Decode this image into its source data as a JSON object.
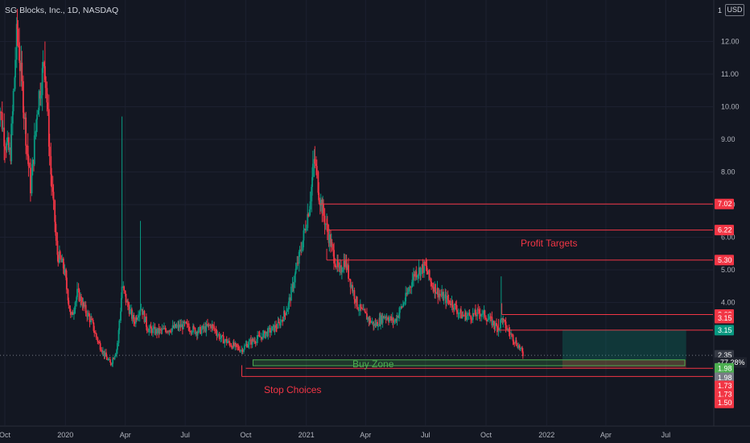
{
  "header": {
    "title": "SG Blocks, Inc., 1D, NASDAQ",
    "currency": "USD",
    "scale_marker": "1"
  },
  "chart_data": {
    "type": "candlestick",
    "title": "SG Blocks, Inc., 1D, NASDAQ",
    "ylim": [
      1.3,
      13.0
    ],
    "y_ticks": [
      "12.00",
      "11.00",
      "10.00",
      "9.00",
      "8.00",
      "7.00",
      "6.00",
      "5.00",
      "4.00"
    ],
    "x_ticks": [
      "Oct",
      "2020",
      "Apr",
      "Jul",
      "Oct",
      "2021",
      "Apr",
      "Jul",
      "Oct",
      "2022",
      "Apr",
      "Jul"
    ],
    "price_path": [
      [
        "2019-09-20",
        10.5
      ],
      [
        "2019-10-01",
        9.0
      ],
      [
        "2019-10-10",
        8.5
      ],
      [
        "2019-10-20",
        12.5
      ],
      [
        "2019-11-01",
        9.5
      ],
      [
        "2019-11-10",
        7.5
      ],
      [
        "2019-11-20",
        10.0
      ],
      [
        "2019-12-01",
        11.5
      ],
      [
        "2019-12-10",
        8.0
      ],
      [
        "2019-12-20",
        5.5
      ],
      [
        "2019-12-31",
        5.0
      ],
      [
        "2020-01-10",
        3.5
      ],
      [
        "2020-01-20",
        4.3
      ],
      [
        "2020-01-31",
        3.8
      ],
      [
        "2020-02-10",
        3.4
      ],
      [
        "2020-02-20",
        2.8
      ],
      [
        "2020-03-01",
        2.4
      ],
      [
        "2020-03-10",
        2.1
      ],
      [
        "2020-03-20",
        2.6
      ],
      [
        "2020-03-28",
        4.5
      ],
      [
        "2020-04-05",
        3.9
      ],
      [
        "2020-04-15",
        3.4
      ],
      [
        "2020-04-25",
        3.9
      ],
      [
        "2020-05-05",
        3.2
      ],
      [
        "2020-05-20",
        3.1
      ],
      [
        "2020-06-10",
        3.2
      ],
      [
        "2020-07-01",
        3.3
      ],
      [
        "2020-07-20",
        3.1
      ],
      [
        "2020-08-10",
        3.3
      ],
      [
        "2020-08-25",
        2.9
      ],
      [
        "2020-09-10",
        2.7
      ],
      [
        "2020-09-25",
        2.55
      ],
      [
        "2020-10-05",
        2.75
      ],
      [
        "2020-10-20",
        2.9
      ],
      [
        "2020-11-05",
        3.1
      ],
      [
        "2020-11-20",
        3.3
      ],
      [
        "2020-12-05",
        3.9
      ],
      [
        "2020-12-15",
        4.8
      ],
      [
        "2020-12-28",
        6.0
      ],
      [
        "2021-01-06",
        7.0
      ],
      [
        "2021-01-14",
        8.4
      ],
      [
        "2021-01-22",
        7.2
      ],
      [
        "2021-02-01",
        6.3
      ],
      [
        "2021-02-10",
        5.6
      ],
      [
        "2021-02-20",
        4.9
      ],
      [
        "2021-03-01",
        5.3
      ],
      [
        "2021-03-10",
        4.6
      ],
      [
        "2021-03-20",
        3.9
      ],
      [
        "2021-04-01",
        3.6
      ],
      [
        "2021-04-15",
        3.3
      ],
      [
        "2021-05-01",
        3.6
      ],
      [
        "2021-05-15",
        3.4
      ],
      [
        "2021-06-01",
        4.1
      ],
      [
        "2021-06-15",
        4.9
      ],
      [
        "2021-07-01",
        5.1
      ],
      [
        "2021-07-10",
        4.6
      ],
      [
        "2021-07-25",
        4.2
      ],
      [
        "2021-08-10",
        4.0
      ],
      [
        "2021-08-25",
        3.6
      ],
      [
        "2021-09-10",
        3.6
      ],
      [
        "2021-09-25",
        3.7
      ],
      [
        "2021-10-10",
        3.4
      ],
      [
        "2021-10-20",
        3.2
      ],
      [
        "2021-10-25",
        3.5
      ],
      [
        "2021-11-05",
        3.1
      ],
      [
        "2021-11-15",
        2.8
      ],
      [
        "2021-11-22",
        2.6
      ],
      [
        "2021-11-28",
        2.35
      ]
    ],
    "levels": [
      {
        "name": "profit-target-1",
        "value": "7.02",
        "price": 7.02
      },
      {
        "name": "profit-target-2",
        "value": "6.22",
        "price": 6.22
      },
      {
        "name": "profit-target-3",
        "value": "5.30",
        "price": 5.3
      },
      {
        "name": "profit-target-4",
        "value": "3.63",
        "price": 3.63
      },
      {
        "name": "profit-target-5",
        "value": "3.15",
        "price": 3.15
      }
    ],
    "buy_zone": {
      "label": "Buy Zone",
      "top": 2.24,
      "bottom": 2.06
    },
    "stops": [
      {
        "price": 1.98
      },
      {
        "price": 1.73
      }
    ],
    "position": {
      "entry": 2.24,
      "target": 3.15,
      "stop": 1.98,
      "start": "2022-01-25",
      "end": "2022-08-01"
    },
    "price_labels": [
      {
        "name": "target-label-1",
        "text": "7.02",
        "price": 7.02,
        "color": "#f23645"
      },
      {
        "name": "target-label-2",
        "text": "6.22",
        "price": 6.22,
        "color": "#f23645"
      },
      {
        "name": "target-label-3",
        "text": "5.30",
        "price": 5.3,
        "color": "#f23645"
      },
      {
        "name": "target-label-4",
        "text": "3.63",
        "price": 3.63,
        "color": "#f23645"
      },
      {
        "name": "target-label-5",
        "text": "3.15",
        "price": 3.52,
        "color": "#f23645"
      },
      {
        "name": "target-label-6",
        "text": "3.15",
        "price": 3.15,
        "color": "#089981"
      },
      {
        "name": "last-price-label",
        "text": "2.35",
        "price": 2.38,
        "color": "#363a45"
      },
      {
        "name": "change-label",
        "text": "-77.28%",
        "price": 2.16,
        "color": "#1e222d"
      },
      {
        "name": "buy-zone-label",
        "text": "1.98",
        "price": 1.98,
        "color": "#4caf50"
      },
      {
        "name": "stop-label-1",
        "text": "1.98",
        "price": 1.69,
        "color": "#787b86"
      },
      {
        "name": "stop-label-2",
        "text": "1.73",
        "price": 1.44,
        "color": "#f23645"
      },
      {
        "name": "stop-label-3",
        "text": "1.73",
        "price": 1.18,
        "color": "#f23645"
      },
      {
        "name": "stop-label-4",
        "text": "1.50",
        "price": 0.92,
        "color": "#f23645"
      }
    ],
    "annotations": {
      "profit_targets": "Profit Targets",
      "buy_zone": "Buy Zone",
      "stop_choices": "Stop Choices"
    }
  },
  "colors": {
    "bg": "#131722",
    "up": "#089981",
    "down": "#f23645",
    "level": "#f23645",
    "buy": "#4caf50"
  }
}
